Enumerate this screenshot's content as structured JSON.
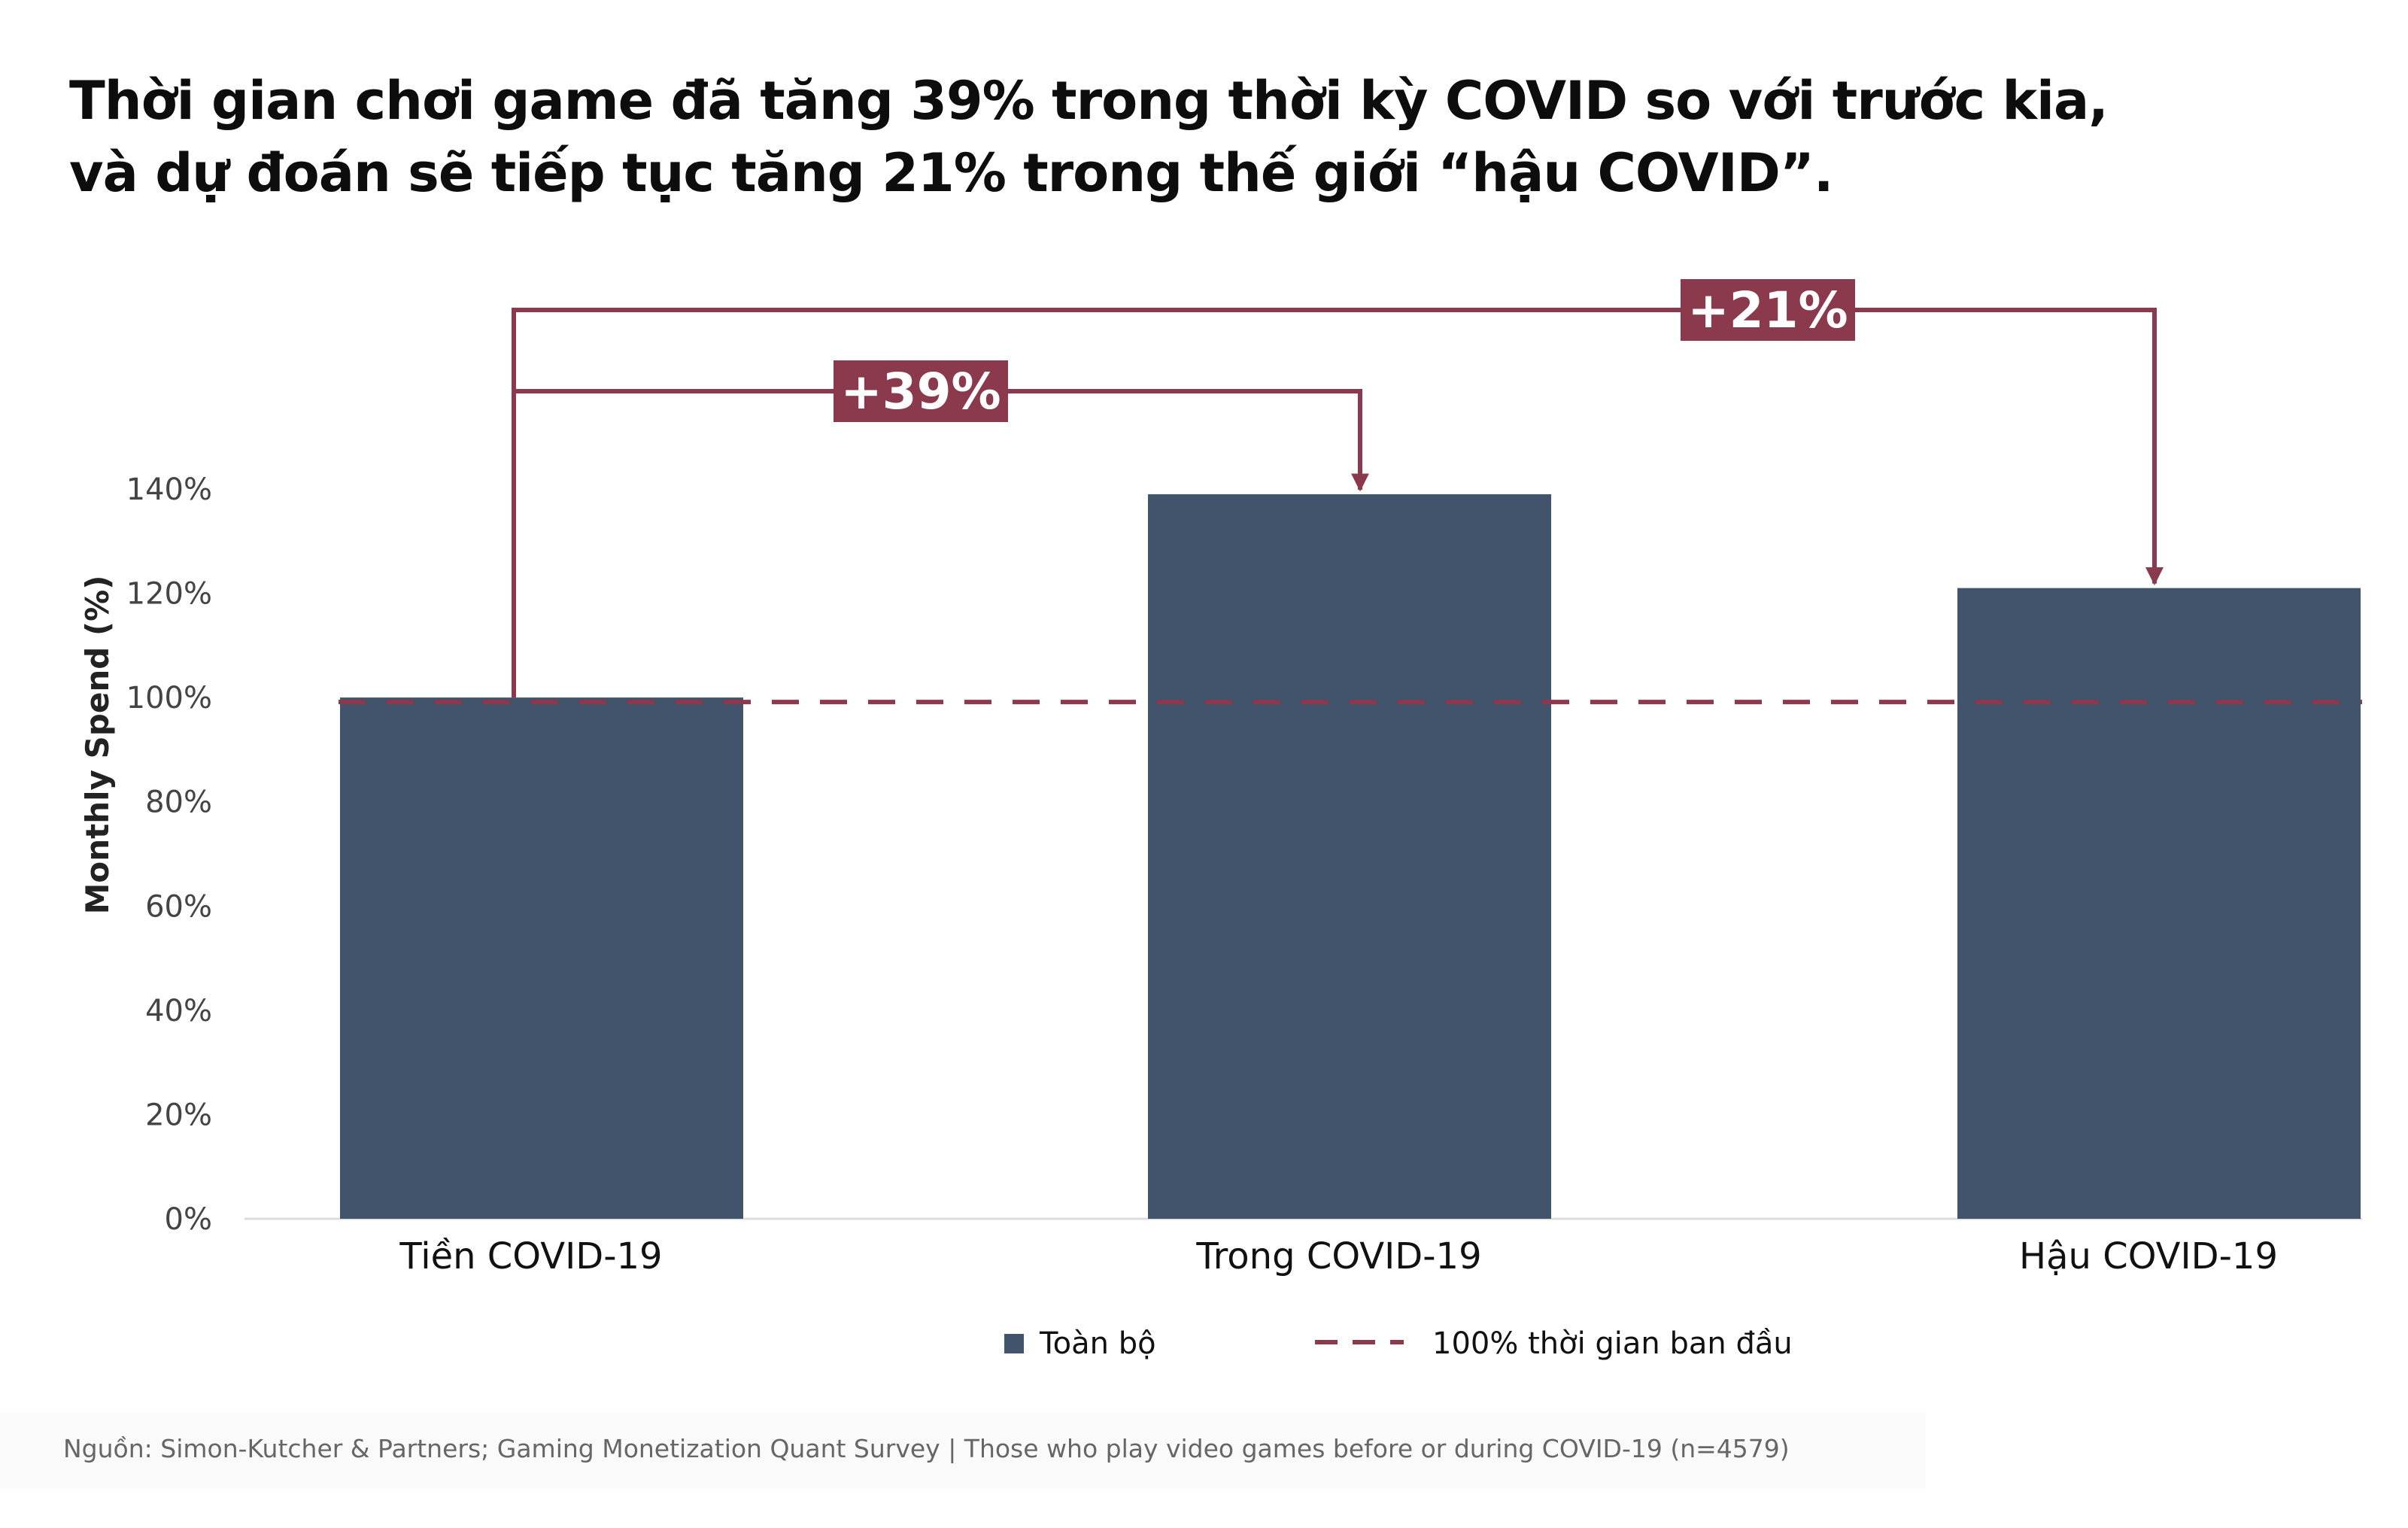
{
  "title": {
    "line1": "Thời gian chơi game đã tăng 39% trong thời kỳ COVID so với trước kia,",
    "line2": "và dự đoán sẽ tiếp tục tăng 21% trong thế giới “hậu COVID”."
  },
  "colors": {
    "bar": "#41546C",
    "accent": "#8B3A4E",
    "axis_text": "#444444",
    "category_text": "#111111"
  },
  "chart_data": {
    "type": "bar",
    "ylabel": "Monthly Spend (%)",
    "ylim": [
      0,
      140
    ],
    "yticks": [
      0,
      20,
      40,
      60,
      80,
      100,
      120,
      140
    ],
    "ytick_labels": [
      "0%",
      "20%",
      "40%",
      "60%",
      "80%",
      "100%",
      "120%",
      "140%"
    ],
    "categories": [
      "Tiền COVID-19",
      "Trong COVID-19",
      "Hậu COVID-19"
    ],
    "series": [
      {
        "name": "Toàn bộ",
        "values": [
          100,
          139,
          121
        ]
      }
    ],
    "reference_line": {
      "value": 100,
      "label": "100% thời gian ban đầu",
      "style": "dashed"
    },
    "annotations": [
      {
        "text": "+39%",
        "from": "Tiền COVID-19",
        "to": "Trong COVID-19"
      },
      {
        "text": "+21%",
        "from": "Tiền COVID-19",
        "to": "Hậu COVID-19"
      }
    ],
    "legend": {
      "position": "bottom-center",
      "items": [
        "Toàn bộ",
        "100% thời gian ban đầu"
      ]
    }
  },
  "source": "Nguồn: Simon-Kutcher & Partners; Gaming Monetization Quant Survey | Those who play video games before or during COVID-19 (n=4579)"
}
